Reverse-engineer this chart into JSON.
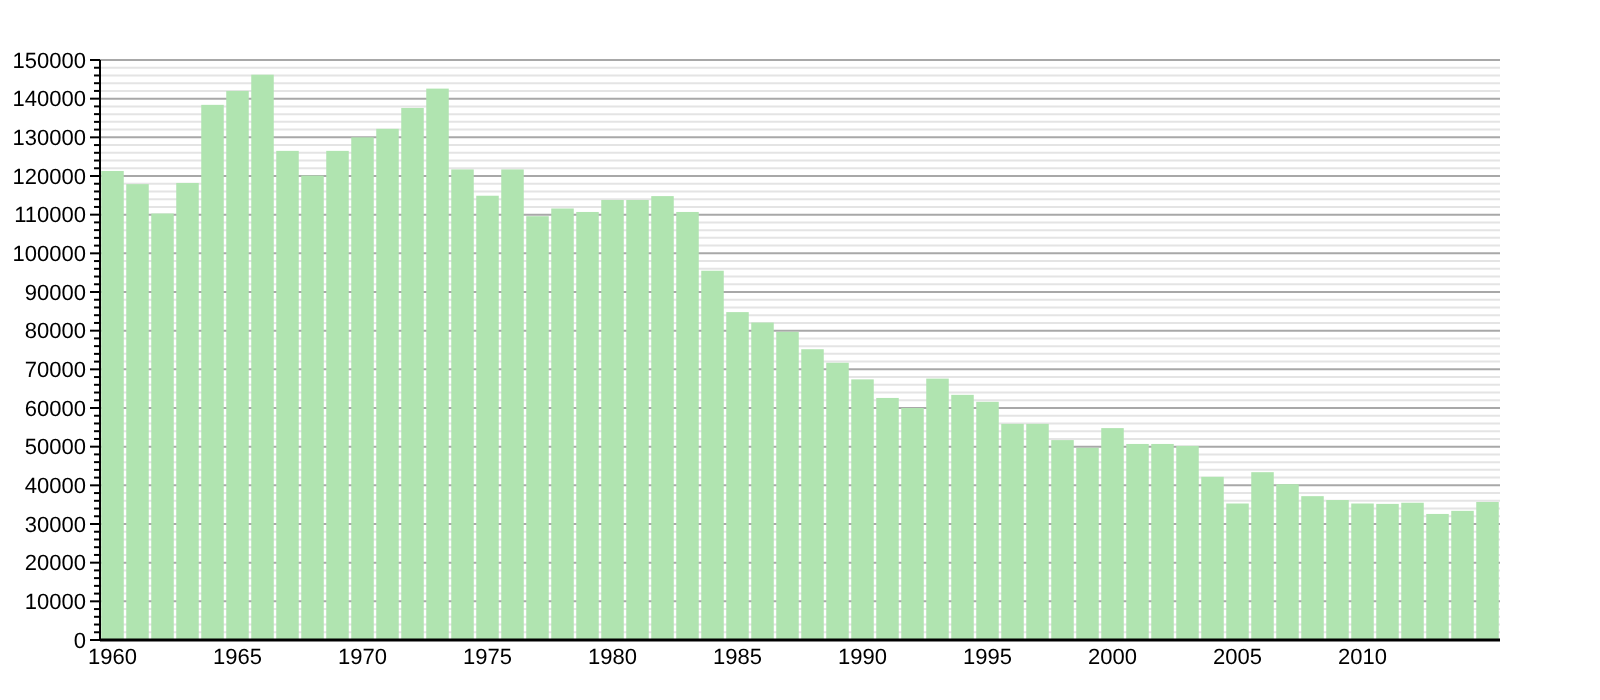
{
  "chart_data": {
    "type": "bar",
    "categories": [
      "1960",
      null,
      null,
      null,
      null,
      "1965",
      null,
      null,
      null,
      null,
      "1970",
      null,
      null,
      null,
      null,
      "1975",
      null,
      null,
      null,
      null,
      "1980",
      null,
      null,
      null,
      null,
      "1985",
      null,
      null,
      null,
      null,
      "1990",
      null,
      null,
      null,
      null,
      "1995",
      null,
      null,
      null,
      null,
      "2000",
      null,
      null,
      null,
      null,
      "2005",
      null,
      null,
      null,
      null,
      "2010",
      null,
      null,
      null,
      null,
      null
    ],
    "values": [
      121300,
      117900,
      110300,
      118200,
      138400,
      142000,
      146200,
      126500,
      120100,
      126500,
      130000,
      132200,
      137600,
      142600,
      121700,
      114900,
      121700,
      109600,
      111600,
      110700,
      113800,
      113800,
      114800,
      110700,
      95500,
      84800,
      82100,
      79700,
      75200,
      71700,
      67400,
      62600,
      60000,
      67600,
      63400,
      61600,
      55900,
      55900,
      51700,
      49700,
      54800,
      50700,
      50700,
      50200,
      42200,
      35300,
      43400,
      40300,
      37200,
      36200,
      35300,
      35200,
      35500,
      32600,
      33400,
      35700
    ],
    "color": "#b0e4b0",
    "ylim": [
      0,
      150000
    ],
    "yticks": [
      0,
      {
        "value": 2000,
        "label": null
      },
      {
        "value": 4000,
        "label": null
      },
      {
        "value": 6000,
        "label": null
      },
      {
        "value": 8000,
        "label": null
      },
      10000,
      {
        "value": 12000,
        "label": null
      },
      {
        "value": 14000,
        "label": null
      },
      {
        "value": 16000,
        "label": null
      },
      {
        "value": 18000,
        "label": null
      },
      20000,
      {
        "value": 22000,
        "label": null
      },
      {
        "value": 24000,
        "label": null
      },
      {
        "value": 26000,
        "label": null
      },
      {
        "value": 28000,
        "label": null
      },
      30000,
      {
        "value": 32000,
        "label": null
      },
      {
        "value": 34000,
        "label": null
      },
      {
        "value": 36000,
        "label": null
      },
      {
        "value": 38000,
        "label": null
      },
      40000,
      {
        "value": 42000,
        "label": null
      },
      {
        "value": 44000,
        "label": null
      },
      {
        "value": 46000,
        "label": null
      },
      {
        "value": 48000,
        "label": null
      },
      50000,
      {
        "value": 52000,
        "label": null
      },
      {
        "value": 54000,
        "label": null
      },
      {
        "value": 56000,
        "label": null
      },
      {
        "value": 58000,
        "label": null
      },
      60000,
      {
        "value": 62000,
        "label": null
      },
      {
        "value": 64000,
        "label": null
      },
      {
        "value": 66000,
        "label": null
      },
      {
        "value": 68000,
        "label": null
      },
      70000,
      {
        "value": 72000,
        "label": null
      },
      {
        "value": 74000,
        "label": null
      },
      {
        "value": 76000,
        "label": null
      },
      {
        "value": 78000,
        "label": null
      },
      80000,
      {
        "value": 82000,
        "label": null
      },
      {
        "value": 84000,
        "label": null
      },
      {
        "value": 86000,
        "label": null
      },
      {
        "value": 88000,
        "label": null
      },
      90000,
      {
        "value": 92000,
        "label": null
      },
      {
        "value": 94000,
        "label": null
      },
      {
        "value": 96000,
        "label": null
      },
      {
        "value": 98000,
        "label": null
      },
      100000,
      {
        "value": 102000,
        "label": null
      },
      {
        "value": 104000,
        "label": null
      },
      {
        "value": 106000,
        "label": null
      },
      {
        "value": 108000,
        "label": null
      },
      110000,
      {
        "value": 112000,
        "label": null
      },
      {
        "value": 114000,
        "label": null
      },
      {
        "value": 116000,
        "label": null
      },
      {
        "value": 118000,
        "label": null
      },
      120000,
      {
        "value": 122000,
        "label": null
      },
      {
        "value": 124000,
        "label": null
      },
      {
        "value": 126000,
        "label": null
      },
      {
        "value": 128000,
        "label": null
      },
      130000,
      {
        "value": 132000,
        "label": null
      },
      {
        "value": 134000,
        "label": null
      },
      {
        "value": 136000,
        "label": null
      },
      {
        "value": 138000,
        "label": null
      },
      140000,
      {
        "value": 142000,
        "label": null
      },
      {
        "value": 144000,
        "label": null
      },
      {
        "value": 146000,
        "label": null
      },
      {
        "value": 148000,
        "label": null
      },
      150000
    ],
    "grid": "y"
  }
}
